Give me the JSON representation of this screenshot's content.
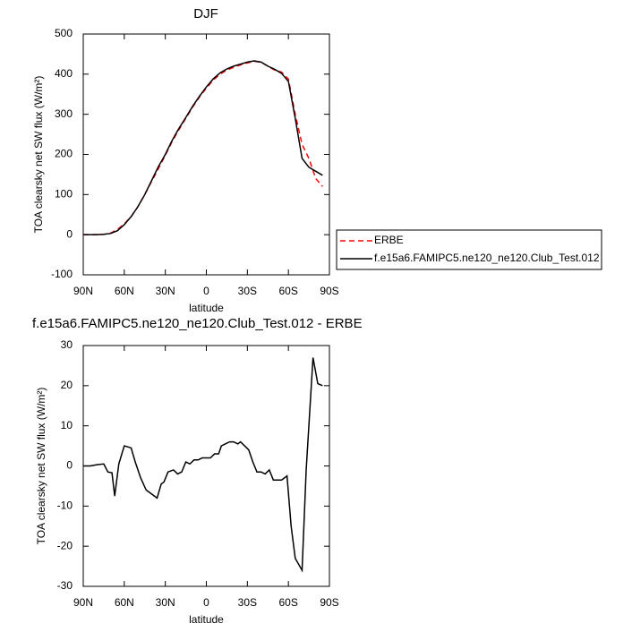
{
  "chart_data": [
    {
      "type": "line",
      "title": "DJF",
      "x_label": "latitude",
      "y_label": "TOA clearsky net SW flux (W/m²)",
      "xlim": [
        90,
        -90
      ],
      "xticks": [
        {
          "value": 90,
          "label": "90N"
        },
        {
          "value": 60,
          "label": "60N"
        },
        {
          "value": 30,
          "label": "30N"
        },
        0,
        {
          "value": -30,
          "label": "30S"
        },
        {
          "value": -60,
          "label": "60S"
        },
        {
          "value": -90,
          "label": "90S"
        }
      ],
      "ylim": [
        -100,
        500
      ],
      "yticks": [
        -100,
        0,
        100,
        200,
        300,
        400,
        500
      ],
      "legend": "right",
      "x": [
        90,
        85,
        80,
        75,
        70,
        65,
        60,
        55,
        50,
        45,
        40,
        35,
        30,
        25,
        20,
        15,
        10,
        5,
        0,
        -5,
        -10,
        -15,
        -20,
        -25,
        -30,
        -35,
        -40,
        -45,
        -50,
        -55,
        -60,
        -65,
        -70,
        -75,
        -80,
        -85
      ],
      "series": [
        {
          "name": "ERBE",
          "color": "#ff0000",
          "dashed": true,
          "values": [
            0,
            0,
            0,
            1,
            4,
            13,
            27,
            45,
            70,
            100,
            133,
            165,
            198,
            232,
            262,
            290,
            318,
            343,
            365,
            385,
            400,
            410,
            417,
            423,
            428,
            432,
            430,
            420,
            410,
            405,
            388,
            300,
            225,
            190,
            140,
            120
          ]
        },
        {
          "name": "f.e15a6.FAMIPC5.ne120_ne120.Club_Test.012",
          "color": "#000000",
          "dashed": false,
          "values": [
            0,
            0,
            0,
            1,
            3,
            10,
            25,
            45,
            70,
            100,
            135,
            170,
            200,
            235,
            265,
            292,
            320,
            345,
            368,
            388,
            403,
            413,
            420,
            425,
            430,
            433,
            430,
            420,
            412,
            402,
            382,
            290,
            190,
            168,
            158,
            148
          ]
        }
      ]
    },
    {
      "type": "line",
      "title": "f.e15a6.FAMIPC5.ne120_ne120.Club_Test.012 - ERBE",
      "x_label": "latitude",
      "y_label": "TOA clearsky net SW flux (W/m²)",
      "xlim": [
        90,
        -90
      ],
      "xticks": [
        {
          "value": 90,
          "label": "90N"
        },
        {
          "value": 60,
          "label": "60N"
        },
        {
          "value": 30,
          "label": "30N"
        },
        0,
        {
          "value": -30,
          "label": "30S"
        },
        {
          "value": -60,
          "label": "60S"
        },
        {
          "value": -90,
          "label": "90S"
        }
      ],
      "ylim": [
        -30,
        30
      ],
      "yticks": [
        -30,
        -20,
        -10,
        0,
        10,
        20,
        30
      ],
      "x": [
        90,
        85,
        80,
        75,
        72,
        69,
        67,
        64,
        60,
        55,
        52,
        48,
        44,
        40,
        36,
        33,
        31,
        28,
        24,
        21,
        18,
        15,
        12,
        9,
        6,
        3,
        0,
        -3,
        -6,
        -9,
        -11,
        -14,
        -17,
        -20,
        -23,
        -25,
        -28,
        -31,
        -34,
        -37,
        -40,
        -43,
        -46,
        -49,
        -52,
        -55,
        -59,
        -62,
        -65,
        -70,
        -73,
        -78,
        -81.5,
        -85
      ],
      "series": [
        {
          "color": "#000000",
          "dashed": false,
          "values": [
            0,
            0,
            0.3,
            0.5,
            -1.5,
            -1.7,
            -7.5,
            0.5,
            5,
            4.5,
            1,
            -3,
            -6,
            -7,
            -8,
            -4.5,
            -4,
            -1.5,
            -1,
            -2,
            -1.5,
            1,
            0.5,
            1.5,
            1.5,
            2,
            2,
            2,
            3,
            3,
            5,
            5.5,
            6,
            6,
            5.5,
            6,
            5,
            4,
            1,
            -1.5,
            -1.5,
            -2,
            -1,
            -3.5,
            -3.5,
            -3.5,
            -2.5,
            -15,
            -23,
            -26,
            -1,
            27,
            20.5,
            20
          ]
        }
      ]
    }
  ]
}
